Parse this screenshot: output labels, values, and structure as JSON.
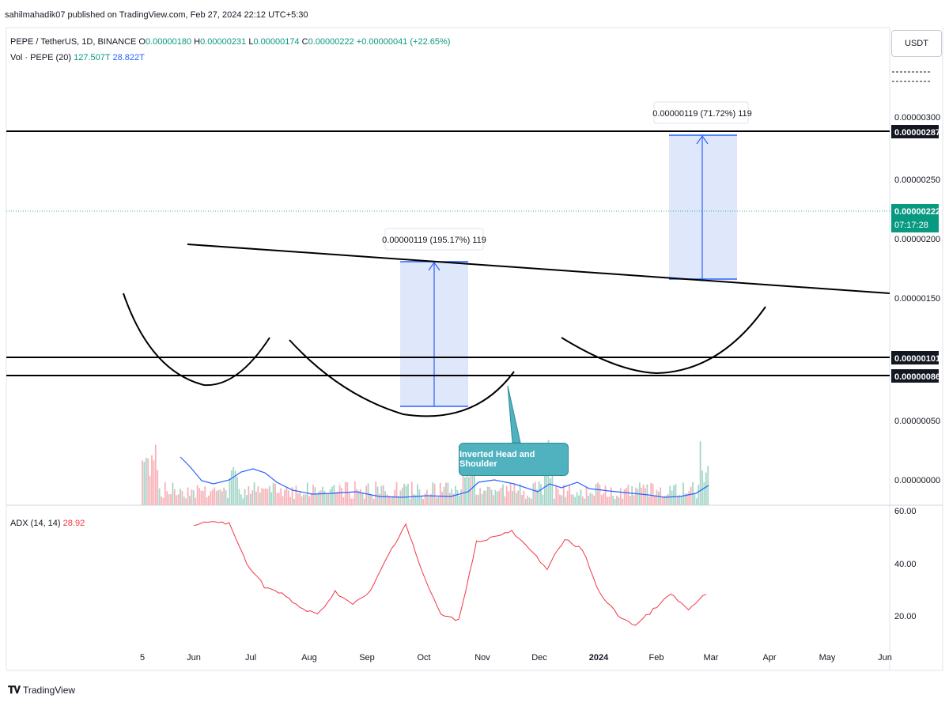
{
  "header": {
    "published": "sahilmahadik07 published on TradingView.com, Feb 27, 2024 22:12 UTC+5:30"
  },
  "legend": {
    "symbol": "PEPE / TetherUS, 1D, BINANCE",
    "o_label": "O",
    "o": "0.00000180",
    "h_label": "H",
    "h": "0.00000231",
    "l_label": "L",
    "l": "0.00000174",
    "c_label": "C",
    "c": "0.00000222",
    "change": "+0.00000041 (+22.65%)",
    "vol_label": "Vol · PEPE (20)",
    "vol": "127.507T",
    "vol_ma": "28.822T",
    "adx_label": "ADX (14, 14)",
    "adx": "28.92"
  },
  "currency_button": "USDT",
  "price_axis": [
    "0.00000300",
    "0.00000250",
    "0.00000200",
    "0.00000150",
    "0.00000050",
    "0.00000000"
  ],
  "price_tags": {
    "resistance": "0.00000287",
    "current": "0.00000222",
    "countdown": "07:17:28",
    "level_101": "0.00000101",
    "level_086": "0.00000086"
  },
  "adx_axis": [
    "60.00",
    "40.00",
    "20.00"
  ],
  "time_axis": [
    "5",
    "Jun",
    "Jul",
    "Aug",
    "Sep",
    "Oct",
    "Nov",
    "Dec",
    "2024",
    "Feb",
    "Mar",
    "Apr",
    "May",
    "Jun"
  ],
  "measure_labels": {
    "first": "0.00000119 (195.17%) 119",
    "second": "0.00000119 (71.72%) 119"
  },
  "callout": "Inverted Head and Shoulder",
  "footer": {
    "brand": "TradingView"
  },
  "colors": {
    "up": "#089981",
    "down": "#f23645",
    "ma": "#2962ff",
    "adx": "#f23645",
    "measure_fill": "#dce4fb",
    "callout": "#4fb2be"
  },
  "chart_data": {
    "type": "candlestick",
    "price_range": [
      0,
      3.4e-06
    ],
    "key_levels": [
      2.87e-06,
      1.01e-06,
      8.6e-07
    ],
    "current_price": 2.22e-06,
    "adx_range": [
      10,
      60
    ],
    "adx_values": [
      54,
      56,
      55,
      40,
      31,
      28,
      23,
      20,
      29,
      24,
      29,
      43,
      55,
      35,
      20,
      18,
      48,
      50,
      52,
      45,
      38,
      49,
      45,
      28,
      20,
      16,
      22,
      28,
      22,
      28
    ]
  }
}
